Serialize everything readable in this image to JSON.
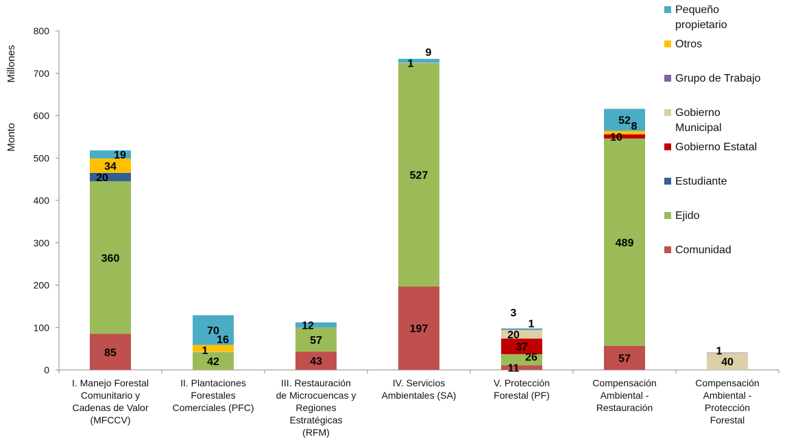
{
  "chart_data": {
    "type": "bar",
    "stacked": true,
    "title": "",
    "ylabel": "Monto",
    "ylabel_units": "Millones",
    "ylim": [
      0,
      800
    ],
    "yticks": [
      0,
      100,
      200,
      300,
      400,
      500,
      600,
      700,
      800
    ],
    "grid": false,
    "legend_position": "right",
    "categories": [
      "I. Manejo Forestal Comunitario y Cadenas de Valor (MFCCV)",
      "II. Plantaciones Forestales Comerciales (PFC)",
      "III. Restauración de Microcuencas y Regiones Estratégicas (RFM)",
      "IV. Servicios Ambientales (SA)",
      "V. Protección Forestal (PF)",
      "Compensación Ambiental - Restauración",
      "Compensación Ambiental - Protección Forestal"
    ],
    "category_lines": [
      [
        "I. Manejo Forestal",
        "Comunitario y",
        "Cadenas de Valor",
        "(MFCCV)"
      ],
      [
        "II. Plantaciones",
        "Forestales",
        "Comerciales (PFC)"
      ],
      [
        "III. Restauración",
        "de Microcuencas y",
        "Regiones",
        "Estratégicas",
        "(RFM)"
      ],
      [
        "IV. Servicios",
        "Ambientales (SA)"
      ],
      [
        "V. Protección",
        "Forestal (PF)"
      ],
      [
        "Compensación",
        "Ambiental -",
        "Restauración"
      ],
      [
        "Compensación",
        "Ambiental -",
        "Protección",
        "Forestal"
      ]
    ],
    "series": [
      {
        "name": "Comunidad",
        "color": "#c0504d",
        "values": [
          85,
          0,
          43,
          197,
          11,
          57,
          0
        ]
      },
      {
        "name": "Ejido",
        "color": "#9bbb59",
        "values": [
          360,
          42,
          57,
          527,
          26,
          489,
          0
        ]
      },
      {
        "name": "Estudiante",
        "color": "#365f91",
        "values": [
          20,
          0,
          0,
          0,
          0,
          0,
          0
        ]
      },
      {
        "name": "Gobierno Estatal",
        "color": "#c00000",
        "values": [
          0,
          0,
          0,
          0,
          37,
          10,
          0
        ]
      },
      {
        "name": "Gobierno Municipal",
        "color": "#ddd0a8",
        "values": [
          0,
          1,
          0,
          1,
          20,
          0,
          40
        ]
      },
      {
        "name": "Grupo de Trabajo",
        "color": "#8064a2",
        "values": [
          0,
          0,
          0,
          0,
          1,
          0,
          1
        ]
      },
      {
        "name": "Otros",
        "color": "#ffc000",
        "values": [
          34,
          16,
          0,
          0,
          0,
          8,
          0
        ]
      },
      {
        "name": "Pequeño propietario",
        "color": "#4bacc6",
        "values": [
          19,
          70,
          12,
          9,
          3,
          52,
          0
        ]
      }
    ],
    "legend": [
      {
        "lines": [
          "Pequeño",
          "propietario"
        ],
        "color": "#4bacc6"
      },
      {
        "lines": [
          "Otros"
        ],
        "color": "#ffc000"
      },
      {
        "lines": [
          "Grupo de Trabajo"
        ],
        "color": "#8064a2"
      },
      {
        "lines": [
          "Gobierno",
          "Municipal"
        ],
        "color": "#ddd0a8"
      },
      {
        "lines": [
          "Gobierno Estatal"
        ],
        "color": "#c00000"
      },
      {
        "lines": [
          "Estudiante"
        ],
        "color": "#365f91"
      },
      {
        "lines": [
          "Ejido"
        ],
        "color": "#9bbb59"
      },
      {
        "lines": [
          "Comunidad"
        ],
        "color": "#c0504d"
      }
    ]
  }
}
